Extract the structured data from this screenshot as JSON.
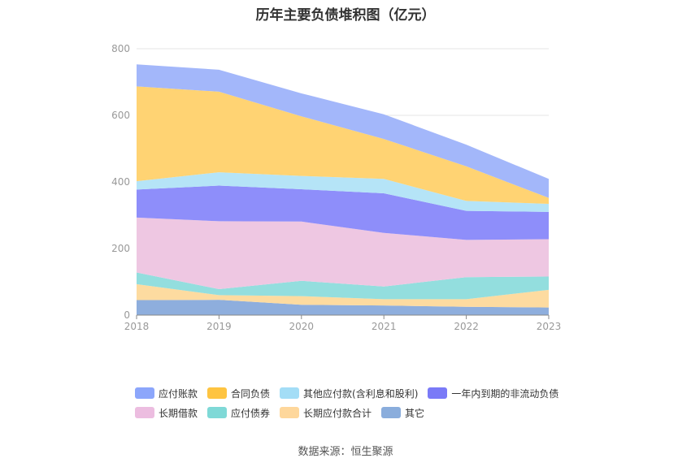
{
  "chart_data": {
    "type": "area",
    "stacked": true,
    "title": "历年主要负债堆积图（亿元）",
    "x": [
      "2018",
      "2019",
      "2020",
      "2021",
      "2022",
      "2023"
    ],
    "ylim": [
      0,
      800
    ],
    "yticks": [
      0,
      200,
      400,
      600,
      800
    ],
    "grid": true,
    "legend_position": "bottom",
    "series": [
      {
        "name": "其它",
        "color": "#8eaedd",
        "values": [
          45,
          46,
          31,
          29,
          25,
          23
        ]
      },
      {
        "name": "长期应付款合计",
        "color": "#fddba0",
        "values": [
          48,
          14,
          26,
          19,
          23,
          53
        ]
      },
      {
        "name": "应付债券",
        "color": "#93dede",
        "values": [
          35,
          18,
          46,
          38,
          66,
          40
        ]
      },
      {
        "name": "长期借款",
        "color": "#eec7e2",
        "values": [
          165,
          204,
          178,
          161,
          112,
          112
        ]
      },
      {
        "name": "一年内到期的非流动负债",
        "color": "#8e8efa",
        "values": [
          84,
          107,
          97,
          119,
          87,
          82
        ]
      },
      {
        "name": "其他应付款(含利息和股利)",
        "color": "#b5e4f7",
        "values": [
          25,
          40,
          40,
          43,
          30,
          24
        ]
      },
      {
        "name": "合同负债",
        "color": "#ffd373",
        "values": [
          285,
          242,
          179,
          120,
          104,
          18
        ]
      },
      {
        "name": "应付账款",
        "color": "#a3b7fa",
        "values": [
          66,
          66,
          69,
          74,
          65,
          57
        ]
      }
    ]
  },
  "legend": {
    "row1": [
      {
        "label": "应付账款",
        "color": "#8ca6fb"
      },
      {
        "label": "合同负债",
        "color": "#fec441"
      },
      {
        "label": "其他应付款(含利息和股利)",
        "color": "#a3ddf6"
      },
      {
        "label": "一年内到期的非流动负债",
        "color": "#7a7af7"
      }
    ],
    "row2": [
      {
        "label": "长期借款",
        "color": "#ecbde0"
      },
      {
        "label": "应付债券",
        "color": "#7fd9d7"
      },
      {
        "label": "长期应付款合计",
        "color": "#fed79b"
      },
      {
        "label": "其它",
        "color": "#8aaddc"
      }
    ]
  },
  "source": "数据来源：恒生聚源"
}
